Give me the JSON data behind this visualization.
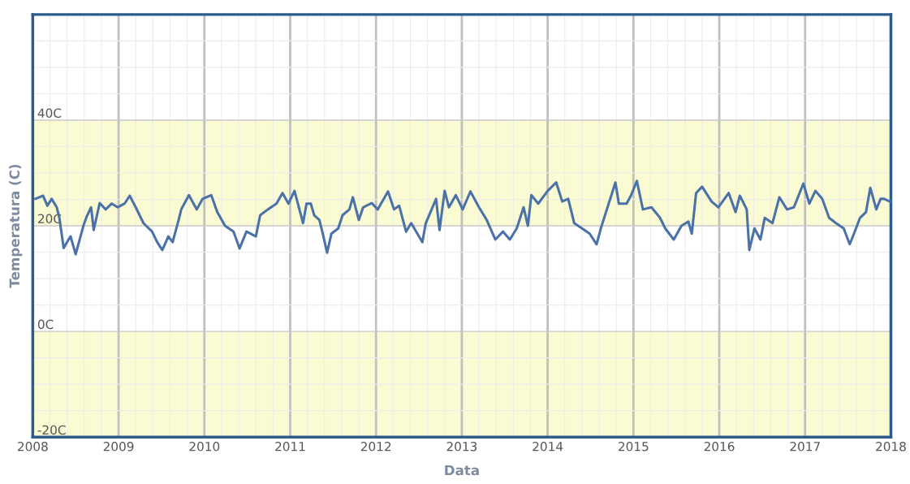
{
  "chart_data": {
    "type": "line",
    "xlabel": "Data",
    "ylabel": "Temperatura (C)",
    "xlim": [
      2008,
      2018
    ],
    "xticks": [
      2008,
      2009,
      2010,
      2011,
      2012,
      2013,
      2014,
      2015,
      2016,
      2017,
      2018
    ],
    "ylim": [
      -20,
      60
    ],
    "yticks": [
      {
        "value": -20,
        "label": "-20C"
      },
      {
        "value": 0,
        "label": "0C"
      },
      {
        "value": 20,
        "label": "20C"
      },
      {
        "value": 40,
        "label": "40C"
      }
    ],
    "grid": true,
    "marker": "none",
    "line_style": "solid",
    "bands": [
      {
        "axis": "y",
        "from": -20,
        "to": 0,
        "color": "#fbfbd3"
      },
      {
        "axis": "y",
        "from": 20,
        "to": 40,
        "color": "#fbfbd3"
      }
    ],
    "series": [
      {
        "color": "#4a72a8",
        "x": [
          2008.03,
          2008.12,
          2008.17,
          2008.22,
          2008.28,
          2008.31,
          2008.36,
          2008.44,
          2008.5,
          2008.59,
          2008.63,
          2008.68,
          2008.71,
          2008.78,
          2008.85,
          2008.92,
          2008.99,
          2009.07,
          2009.13,
          2009.2,
          2009.29,
          2009.39,
          2009.45,
          2009.51,
          2009.58,
          2009.63,
          2009.7,
          2009.73,
          2009.82,
          2009.91,
          2009.98,
          2010.08,
          2010.15,
          2010.24,
          2010.34,
          2010.41,
          2010.49,
          2010.6,
          2010.65,
          2010.74,
          2010.84,
          2010.91,
          2010.98,
          2011.05,
          2011.15,
          2011.19,
          2011.24,
          2011.28,
          2011.34,
          2011.38,
          2011.43,
          2011.48,
          2011.56,
          2011.61,
          2011.69,
          2011.73,
          2011.8,
          2011.85,
          2011.95,
          2012.02,
          2012.14,
          2012.21,
          2012.27,
          2012.35,
          2012.41,
          2012.54,
          2012.58,
          2012.7,
          2012.74,
          2012.8,
          2012.85,
          2012.93,
          2013.01,
          2013.1,
          2013.2,
          2013.29,
          2013.39,
          2013.48,
          2013.56,
          2013.64,
          2013.72,
          2013.77,
          2013.81,
          2013.89,
          2014.0,
          2014.1,
          2014.17,
          2014.24,
          2014.31,
          2014.4,
          2014.49,
          2014.57,
          2014.62,
          2014.69,
          2014.79,
          2014.83,
          2014.92,
          2014.97,
          2015.04,
          2015.11,
          2015.21,
          2015.31,
          2015.37,
          2015.47,
          2015.56,
          2015.64,
          2015.68,
          2015.73,
          2015.8,
          2015.91,
          2015.99,
          2016.11,
          2016.19,
          2016.24,
          2016.32,
          2016.35,
          2016.41,
          2016.48,
          2016.53,
          2016.62,
          2016.7,
          2016.79,
          2016.87,
          2016.98,
          2017.05,
          2017.12,
          2017.2,
          2017.28,
          2017.36,
          2017.45,
          2017.52,
          2017.57,
          2017.64,
          2017.71,
          2017.76,
          2017.83,
          2017.88,
          2017.92,
          2017.99
        ],
        "values": [
          25.1,
          25.7,
          23.8,
          25.1,
          23.5,
          21.5,
          15.8,
          18.0,
          14.6,
          20.0,
          21.8,
          23.5,
          19.2,
          24.3,
          23.1,
          24.2,
          23.5,
          24.2,
          25.7,
          23.5,
          20.5,
          18.9,
          16.9,
          15.4,
          18.0,
          16.9,
          21.1,
          23.1,
          25.8,
          23.1,
          25.1,
          25.8,
          22.6,
          20.0,
          18.9,
          15.7,
          18.9,
          18.0,
          22.0,
          23.1,
          24.2,
          26.2,
          24.2,
          26.6,
          20.5,
          24.2,
          24.2,
          22.0,
          21.1,
          18.5,
          14.9,
          18.5,
          19.5,
          22.0,
          23.1,
          25.4,
          21.1,
          23.5,
          24.3,
          23.1,
          26.5,
          23.1,
          23.8,
          18.9,
          20.5,
          16.9,
          20.5,
          25.1,
          19.2,
          26.6,
          23.5,
          25.8,
          23.1,
          26.5,
          23.5,
          21.1,
          17.4,
          18.9,
          17.4,
          19.5,
          23.5,
          20.0,
          25.8,
          24.2,
          26.6,
          28.2,
          24.6,
          25.1,
          20.5,
          19.5,
          18.5,
          16.5,
          19.5,
          23.1,
          28.2,
          24.2,
          24.2,
          25.7,
          28.5,
          23.1,
          23.5,
          21.5,
          19.5,
          17.4,
          20.0,
          20.8,
          18.5,
          26.2,
          27.4,
          24.6,
          23.5,
          26.2,
          22.6,
          25.7,
          23.1,
          15.4,
          19.5,
          17.4,
          21.5,
          20.5,
          25.4,
          23.1,
          23.5,
          28.0,
          24.2,
          26.6,
          25.1,
          21.5,
          20.5,
          19.5,
          16.5,
          18.5,
          21.5,
          22.6,
          27.2,
          23.1,
          25.1,
          25.1,
          24.6
        ]
      }
    ]
  }
}
